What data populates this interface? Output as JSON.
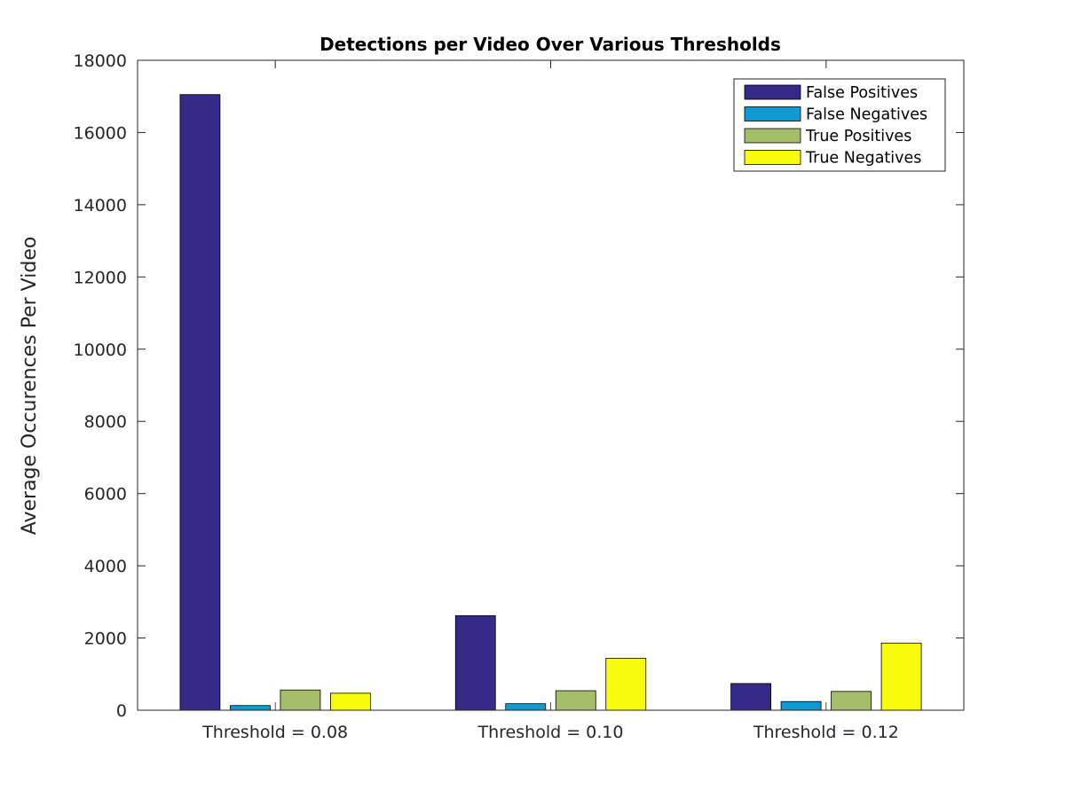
{
  "chart_data": {
    "type": "bar",
    "title": "Detections per Video Over Various Thresholds",
    "xlabel": "",
    "ylabel": "Average Occurences Per Video",
    "categories": [
      "Threshold = 0.08",
      "Threshold = 0.10",
      "Threshold = 0.12"
    ],
    "series": [
      {
        "name": "False Positives",
        "color": "#352a87",
        "values": [
          17050,
          2620,
          740
        ]
      },
      {
        "name": "False Negatives",
        "color": "#0f9ad3",
        "values": [
          130,
          180,
          240
        ]
      },
      {
        "name": "True Positives",
        "color": "#a5be6a",
        "values": [
          560,
          540,
          520
        ]
      },
      {
        "name": "True Negatives",
        "color": "#f9fb0e",
        "values": [
          470,
          1440,
          1860
        ]
      }
    ],
    "ylim": [
      0,
      18000
    ],
    "yticks": [
      0,
      2000,
      4000,
      6000,
      8000,
      10000,
      12000,
      14000,
      16000,
      18000
    ],
    "grid": false,
    "legend_position": "top-right"
  }
}
